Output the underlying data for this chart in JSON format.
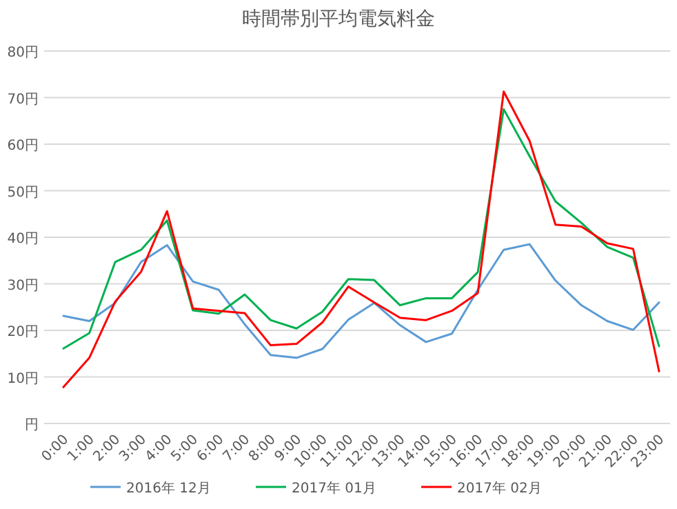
{
  "chart_data": {
    "type": "line",
    "title": "時間帯別平均電気料金",
    "categories": [
      "0:00",
      "1:00",
      "2:00",
      "3:00",
      "4:00",
      "5:00",
      "6:00",
      "7:00",
      "8:00",
      "9:00",
      "10:00",
      "11:00",
      "12:00",
      "13:00",
      "14:00",
      "15:00",
      "16:00",
      "17:00",
      "18:00",
      "19:00",
      "20:00",
      "21:00",
      "22:00",
      "23:00"
    ],
    "series": [
      {
        "name": "2016年 12月",
        "color": "#5b9bd5",
        "values": [
          23.1,
          22.0,
          25.9,
          34.7,
          38.3,
          30.5,
          28.7,
          21.3,
          14.7,
          14.1,
          16.0,
          22.3,
          25.9,
          21.1,
          17.5,
          19.3,
          28.7,
          37.3,
          38.5,
          30.7,
          25.4,
          22.0,
          20.1,
          26.0
        ]
      },
      {
        "name": "2017年 01月",
        "color": "#00b050",
        "values": [
          16.1,
          19.4,
          34.7,
          37.3,
          43.6,
          24.3,
          23.6,
          27.7,
          22.2,
          20.4,
          24.0,
          31.0,
          30.8,
          25.4,
          26.9,
          26.9,
          32.5,
          67.5,
          57.4,
          47.7,
          43.1,
          37.9,
          35.6,
          16.6
        ]
      },
      {
        "name": "2017年 02月",
        "color": "#ff0000",
        "values": [
          7.8,
          14.1,
          26.2,
          32.6,
          45.6,
          24.7,
          24.2,
          23.7,
          16.8,
          17.1,
          21.7,
          29.4,
          26.0,
          22.7,
          22.2,
          24.2,
          28.0,
          71.3,
          60.7,
          42.7,
          42.3,
          38.7,
          37.5,
          11.2
        ]
      }
    ],
    "ylim": [
      0,
      80
    ],
    "yticks": [
      {
        "value": 0,
        "label": "円"
      },
      {
        "value": 10,
        "label": "10円"
      },
      {
        "value": 20,
        "label": "20円"
      },
      {
        "value": 30,
        "label": "30円"
      },
      {
        "value": 40,
        "label": "40円"
      },
      {
        "value": 50,
        "label": "50円"
      },
      {
        "value": 60,
        "label": "60円"
      },
      {
        "value": 70,
        "label": "70円"
      },
      {
        "value": 80,
        "label": "80円"
      }
    ],
    "grid": "y",
    "legend": "bottom",
    "marker": "none",
    "line_style": "solid"
  }
}
